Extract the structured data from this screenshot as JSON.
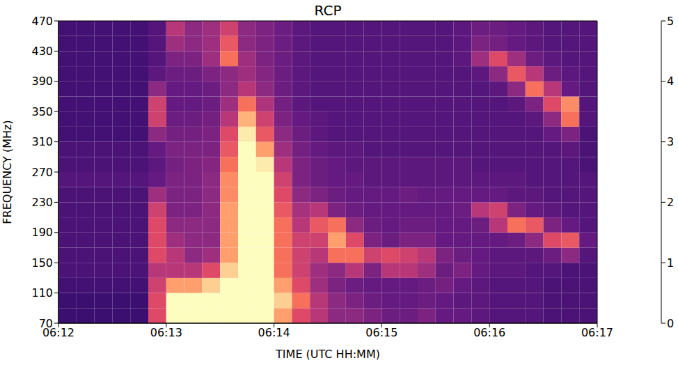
{
  "chart_data": {
    "type": "heatmap",
    "title": "RCP",
    "x_label": "TIME (UTC HH:MM)",
    "y_label": "FREQUENCY (MHz)",
    "xlim": [
      0,
      300
    ],
    "xticks": [
      {
        "value": 0,
        "label": "06:12"
      },
      {
        "value": 60,
        "label": "06:13"
      },
      {
        "value": 120,
        "label": "06:14"
      },
      {
        "value": 180,
        "label": "06:15"
      },
      {
        "value": 240,
        "label": "06:16"
      },
      {
        "value": 300,
        "label": "06:17"
      }
    ],
    "ylim": [
      70,
      470
    ],
    "yticks": [
      70,
      110,
      150,
      190,
      230,
      270,
      310,
      350,
      390,
      430,
      470
    ],
    "colorbar": {
      "range": [
        0,
        5
      ],
      "ticks": [
        0,
        1,
        2,
        3,
        4,
        5
      ]
    },
    "cells": {
      "x_bins": [
        0,
        10,
        20,
        30,
        40,
        50,
        60,
        70,
        80,
        90,
        100,
        110,
        120,
        130,
        140,
        150,
        160,
        170,
        180,
        190,
        200,
        210,
        220,
        230,
        240,
        250,
        260,
        270,
        280,
        290,
        300
      ],
      "y_bins": [
        70,
        90,
        110,
        130,
        150,
        170,
        190,
        210,
        230,
        250,
        270,
        290,
        310,
        330,
        350,
        370,
        390,
        410,
        430,
        450,
        470
      ],
      "values": [
        [
          1.0,
          1.0,
          1.0,
          1.0,
          1.0,
          3.0,
          5,
          5,
          5,
          5,
          5,
          5,
          4,
          3,
          2.5,
          2,
          2,
          1.8,
          1.6,
          1.6,
          1.8,
          1.5,
          1.5,
          1.4,
          1.3,
          1.3,
          1.3,
          1.2,
          1.2,
          1.2
        ],
        [
          1.0,
          1.0,
          1.0,
          1.0,
          1.0,
          3.0,
          5,
          5,
          5,
          5,
          5,
          5,
          4.5,
          3.5,
          2.5,
          2,
          1.8,
          1.6,
          1.5,
          1.5,
          1.6,
          1.5,
          1.4,
          1.4,
          1.3,
          1.3,
          1.3,
          1.2,
          1.2,
          1.2
        ],
        [
          1.1,
          1.1,
          1.1,
          1.1,
          1.1,
          2.8,
          4,
          4,
          4.5,
          5,
          5,
          5,
          4,
          3,
          2.2,
          1.8,
          1.6,
          1.5,
          1.5,
          1.5,
          1.6,
          1.7,
          1.5,
          1.4,
          1.3,
          1.3,
          1.3,
          1.2,
          1.2,
          1.2
        ],
        [
          1.2,
          1.2,
          1.2,
          1.2,
          1.2,
          2.5,
          2.5,
          2.5,
          3,
          4.5,
          5,
          5,
          3.5,
          2.8,
          2.2,
          2.0,
          2.5,
          1.8,
          2.5,
          2.5,
          2.2,
          1.6,
          1.8,
          1.5,
          1.4,
          1.4,
          1.3,
          1.3,
          1.2,
          1.2
        ],
        [
          1.2,
          1.2,
          1.2,
          1.2,
          1.2,
          3.0,
          2.5,
          2,
          2.2,
          4,
          5,
          5,
          3.5,
          2.8,
          2.5,
          3.5,
          3.5,
          2.8,
          3,
          2.8,
          2.5,
          1.8,
          1.6,
          1.5,
          1.4,
          1.4,
          1.4,
          1.6,
          2.0,
          1.3
        ],
        [
          1.2,
          1.2,
          1.2,
          1.2,
          1.2,
          3.0,
          2.2,
          2,
          2,
          4,
          5,
          5,
          3.5,
          2.8,
          2.8,
          4,
          3,
          1.8,
          1.6,
          1.8,
          1.8,
          1.5,
          1.5,
          1.5,
          1.5,
          1.6,
          2.0,
          3.0,
          3.2,
          1.5
        ],
        [
          1.2,
          1.2,
          1.2,
          1.2,
          1.2,
          3.0,
          2,
          2,
          2,
          4,
          5,
          5,
          3.5,
          2.5,
          3.2,
          3.5,
          2.0,
          1.6,
          1.5,
          1.6,
          1.6,
          1.5,
          1.5,
          1.6,
          2.5,
          3.5,
          3.2,
          1.8,
          1.5,
          1.3
        ],
        [
          1.2,
          1.2,
          1.2,
          1.2,
          1.2,
          2.8,
          1.8,
          1.8,
          2,
          4,
          5,
          5,
          3.2,
          2.3,
          2.5,
          1.8,
          1.6,
          1.5,
          1.5,
          1.5,
          1.5,
          1.5,
          1.6,
          2.5,
          2.8,
          1.8,
          1.5,
          1.4,
          1.3,
          1.3
        ],
        [
          1.2,
          1.2,
          1.2,
          1.2,
          1.2,
          2.2,
          1.8,
          1.8,
          2,
          3.8,
          5,
          5,
          3,
          2,
          1.8,
          1.6,
          1.5,
          1.5,
          1.5,
          1.6,
          1.5,
          1.5,
          1.5,
          1.5,
          1.5,
          1.4,
          1.4,
          1.3,
          1.3,
          1.3
        ],
        [
          1.3,
          1.3,
          1.3,
          1.3,
          1.3,
          1.5,
          1.8,
          1.8,
          2,
          3.8,
          5,
          5,
          2.8,
          1.8,
          1.6,
          1.5,
          1.5,
          1.4,
          1.4,
          1.4,
          1.4,
          1.4,
          1.4,
          1.4,
          1.4,
          1.4,
          1.3,
          1.3,
          1.3,
          1.3
        ],
        [
          1.2,
          1.2,
          1.2,
          1.2,
          1.2,
          1.4,
          1.7,
          1.8,
          1.9,
          3.5,
          5,
          4.8,
          2.5,
          1.8,
          1.6,
          1.5,
          1.4,
          1.4,
          1.4,
          1.4,
          1.4,
          1.4,
          1.4,
          1.3,
          1.3,
          1.3,
          1.3,
          1.3,
          1.3,
          1.2
        ],
        [
          1.2,
          1.2,
          1.2,
          1.2,
          1.2,
          1.5,
          1.8,
          1.8,
          1.8,
          3.2,
          5,
          4.0,
          2.2,
          1.7,
          1.5,
          1.4,
          1.4,
          1.3,
          1.3,
          1.3,
          1.3,
          1.3,
          1.3,
          1.3,
          1.3,
          1.3,
          1.3,
          1.3,
          1.4,
          1.2
        ],
        [
          1.1,
          1.1,
          1.1,
          1.1,
          1.1,
          2.0,
          1.7,
          1.7,
          1.8,
          3.0,
          4.8,
          3.2,
          2,
          1.6,
          1.4,
          1.3,
          1.3,
          1.3,
          1.3,
          1.3,
          1.3,
          1.3,
          1.3,
          1.3,
          1.3,
          1.3,
          1.3,
          1.5,
          1.8,
          1.2
        ],
        [
          1.1,
          1.1,
          1.1,
          1.1,
          1.1,
          2.8,
          1.6,
          1.6,
          1.7,
          2.5,
          4.2,
          2.8,
          1.8,
          1.5,
          1.4,
          1.3,
          1.3,
          1.3,
          1.3,
          1.3,
          1.3,
          1.3,
          1.3,
          1.3,
          1.3,
          1.3,
          1.4,
          2.0,
          3.5,
          1.3
        ],
        [
          1.1,
          1.1,
          1.1,
          1.1,
          1.1,
          2.8,
          1.5,
          1.5,
          1.6,
          2.2,
          3.5,
          2.4,
          1.7,
          1.4,
          1.3,
          1.3,
          1.3,
          1.3,
          1.3,
          1.3,
          1.3,
          1.3,
          1.3,
          1.3,
          1.3,
          1.4,
          1.8,
          3.0,
          3.8,
          1.3
        ],
        [
          1.1,
          1.1,
          1.1,
          1.1,
          1.1,
          2.0,
          1.5,
          1.5,
          1.6,
          2.0,
          2.5,
          2.0,
          1.6,
          1.4,
          1.3,
          1.3,
          1.3,
          1.3,
          1.3,
          1.3,
          1.3,
          1.3,
          1.3,
          1.3,
          1.4,
          2.0,
          3.5,
          2.5,
          1.5,
          1.3
        ],
        [
          1.1,
          1.1,
          1.1,
          1.1,
          1.1,
          1.4,
          1.6,
          1.6,
          1.8,
          2.0,
          2.2,
          1.9,
          1.6,
          1.4,
          1.3,
          1.3,
          1.3,
          1.3,
          1.3,
          1.3,
          1.3,
          1.3,
          1.3,
          1.4,
          2.0,
          3.2,
          2.5,
          1.6,
          1.4,
          1.3
        ],
        [
          1.1,
          1.1,
          1.1,
          1.1,
          1.1,
          1.3,
          1.8,
          1.8,
          2.2,
          3.5,
          2.2,
          1.8,
          1.6,
          1.4,
          1.3,
          1.3,
          1.3,
          1.3,
          1.3,
          1.3,
          1.3,
          1.3,
          1.4,
          2.2,
          3.0,
          2.2,
          1.6,
          1.4,
          1.3,
          1.3
        ],
        [
          1.1,
          1.1,
          1.1,
          1.1,
          1.1,
          1.3,
          2.2,
          2.0,
          2.2,
          3.2,
          2.0,
          1.8,
          1.6,
          1.4,
          1.3,
          1.3,
          1.3,
          1.3,
          1.3,
          1.3,
          1.3,
          1.3,
          1.4,
          1.8,
          1.7,
          1.5,
          1.4,
          1.3,
          1.3,
          1.3
        ],
        [
          1.1,
          1.1,
          1.1,
          1.1,
          1.1,
          1.3,
          2.5,
          2.0,
          2.2,
          2.8,
          2.0,
          1.8,
          1.6,
          1.4,
          1.3,
          1.3,
          1.3,
          1.3,
          1.3,
          1.3,
          1.3,
          1.3,
          1.4,
          1.6,
          1.6,
          1.5,
          1.4,
          1.3,
          1.3,
          1.3
        ]
      ]
    }
  }
}
